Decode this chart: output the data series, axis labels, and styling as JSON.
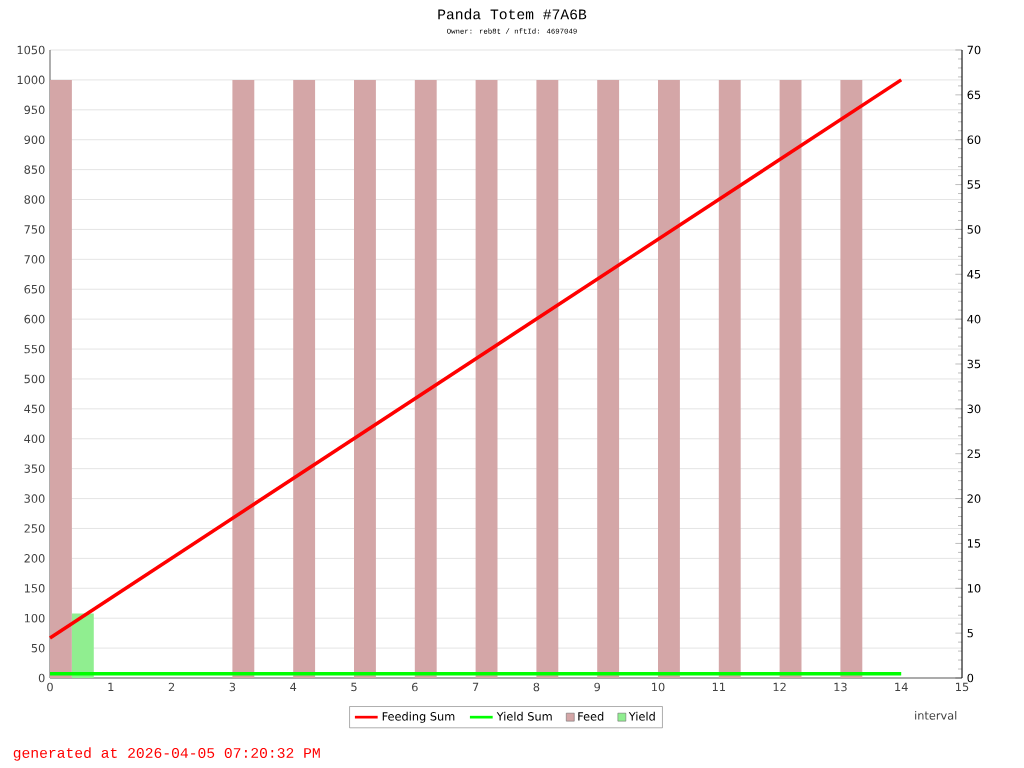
{
  "chart_data": {
    "type": "bar",
    "title": "Panda Totem #7A6B",
    "subtitle": "Owner: reb8t / nftId: 4697049",
    "xlabel": "interval",
    "xlim": [
      0,
      15
    ],
    "xticks": [
      0,
      1,
      2,
      3,
      4,
      5,
      6,
      7,
      8,
      9,
      10,
      11,
      12,
      13,
      14,
      15
    ],
    "ylim": [
      0,
      1050
    ],
    "yticks": [
      0,
      50,
      100,
      150,
      200,
      250,
      300,
      350,
      400,
      450,
      500,
      550,
      600,
      650,
      700,
      750,
      800,
      850,
      900,
      950,
      1000,
      1050
    ],
    "y2lim": [
      0,
      70
    ],
    "y2ticks": [
      0,
      5,
      10,
      15,
      20,
      25,
      30,
      35,
      40,
      45,
      50,
      55,
      60,
      65,
      70
    ],
    "grid": "y",
    "legend": "bottom",
    "series": [
      {
        "name": "Feeding Sum",
        "type": "line",
        "color": "#ff0000",
        "x": [
          0,
          14
        ],
        "values": [
          67,
          1000
        ]
      },
      {
        "name": "Yield Sum",
        "type": "line",
        "color": "#00ff00",
        "x": [
          0,
          14
        ],
        "values": [
          7,
          7
        ]
      },
      {
        "name": "Feed",
        "color": "#d4a6a7",
        "x": [
          0.18,
          3.18,
          4.18,
          5.18,
          6.18,
          7.18,
          8.18,
          9.18,
          10.18,
          11.18,
          12.18,
          13.18
        ],
        "values": [
          1000,
          1000,
          1000,
          1000,
          1000,
          1000,
          1000,
          1000,
          1000,
          1000,
          1000,
          1000
        ]
      },
      {
        "name": "Yield",
        "color": "#90ee90",
        "x": [
          0.54
        ],
        "values": [
          108
        ]
      }
    ],
    "annotations": [
      "generated at 2026-04-05 07:20:32 PM"
    ]
  }
}
